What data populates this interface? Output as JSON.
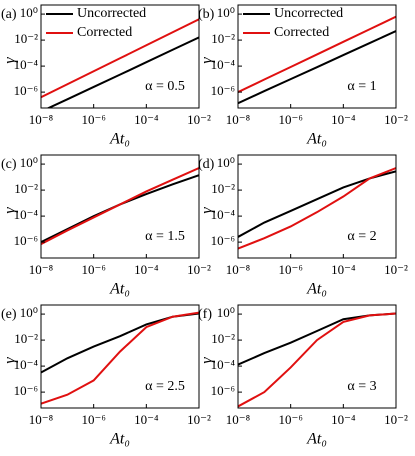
{
  "chart_data": [
    {
      "type": "line",
      "panel_label": "(a)",
      "annotation": "α = 0.5",
      "xlabel": "At₀",
      "ylabel": "γ",
      "log_x": true,
      "log_y": true,
      "legend": "upper left",
      "x": [
        1e-08,
        1e-07,
        1e-06,
        1e-05,
        0.0001,
        0.001,
        0.01
      ],
      "series": [
        {
          "name": "Uncorrected",
          "color": "#000000",
          "values": [
            3.2e-08,
            2.8e-07,
            2.5e-06,
            2.2e-05,
            0.0002,
            0.0018,
            0.016
          ]
        },
        {
          "name": "Corrected",
          "color": "#e01010",
          "values": [
            4e-07,
            4e-06,
            4e-05,
            0.0004,
            0.004,
            0.04,
            0.4
          ]
        }
      ],
      "xlim": [
        1e-08,
        0.01
      ],
      "xticks": [
        {
          "value": 1e-08,
          "label": "10⁻⁸"
        },
        {
          "value": 1e-06,
          "label": "10⁻⁶"
        },
        {
          "value": 0.0001,
          "label": "10⁻⁴"
        },
        {
          "value": 0.01,
          "label": "10⁻²"
        }
      ],
      "ylim": [
        6e-08,
        5
      ],
      "yticks": [
        {
          "value": 1e-06,
          "label": "10⁻⁶"
        },
        {
          "value": 0.0001,
          "label": "10⁻⁴"
        },
        {
          "value": 0.01,
          "label": "10⁻²"
        },
        {
          "value": 1,
          "label": "10⁰"
        }
      ]
    },
    {
      "type": "line",
      "panel_label": "(b)",
      "annotation": "α = 1",
      "xlabel": "At₀",
      "ylabel": "γ",
      "log_x": true,
      "log_y": true,
      "legend": "upper left",
      "x": [
        1e-08,
        1e-07,
        1e-06,
        1e-05,
        0.0001,
        0.001,
        0.01
      ],
      "series": [
        {
          "name": "Uncorrected",
          "color": "#000000",
          "values": [
            1.4e-07,
            1.2e-06,
            1e-05,
            8.3e-05,
            0.00071,
            0.0059,
            0.05
          ]
        },
        {
          "name": "Corrected",
          "color": "#e01010",
          "values": [
            1e-06,
            9.3e-06,
            8.5e-05,
            0.00079,
            0.0074,
            0.068,
            0.63
          ]
        }
      ],
      "xlim": [
        1e-08,
        0.01
      ],
      "xticks": [
        {
          "value": 1e-08,
          "label": "10⁻⁸"
        },
        {
          "value": 1e-06,
          "label": "10⁻⁶"
        },
        {
          "value": 0.0001,
          "label": "10⁻⁴"
        },
        {
          "value": 0.01,
          "label": "10⁻²"
        }
      ],
      "ylim": [
        6e-08,
        5
      ],
      "yticks": [
        {
          "value": 1e-06,
          "label": "10⁻⁶"
        },
        {
          "value": 0.0001,
          "label": "10⁻⁴"
        },
        {
          "value": 0.01,
          "label": "10⁻²"
        },
        {
          "value": 1,
          "label": "10⁰"
        }
      ]
    },
    {
      "type": "line",
      "panel_label": "(c)",
      "annotation": "α = 1.5",
      "xlabel": "At₀",
      "ylabel": "γ",
      "log_x": true,
      "log_y": true,
      "x": [
        1e-08,
        1e-07,
        1e-06,
        1e-05,
        0.0001,
        0.001,
        0.01
      ],
      "series": [
        {
          "color": "#000000",
          "values": [
            1e-06,
            1e-05,
            0.0001,
            0.00079,
            0.005,
            0.028,
            0.14
          ]
        },
        {
          "color": "#e01010",
          "values": [
            7.1e-07,
            7.9e-06,
            7.9e-05,
            0.00079,
            0.0079,
            0.063,
            0.5
          ]
        }
      ],
      "xlim": [
        1e-08,
        0.01
      ],
      "xticks": [
        {
          "value": 1e-08,
          "label": "10⁻⁸"
        },
        {
          "value": 1e-06,
          "label": "10⁻⁶"
        },
        {
          "value": 0.0001,
          "label": "10⁻⁴"
        },
        {
          "value": 0.01,
          "label": "10⁻²"
        }
      ],
      "ylim": [
        6e-08,
        5
      ],
      "yticks": [
        {
          "value": 1e-06,
          "label": "10⁻⁶"
        },
        {
          "value": 0.0001,
          "label": "10⁻⁴"
        },
        {
          "value": 0.01,
          "label": "10⁻²"
        },
        {
          "value": 1,
          "label": "10⁰"
        }
      ]
    },
    {
      "type": "line",
      "panel_label": "(d)",
      "annotation": "α = 2",
      "xlabel": "At₀",
      "ylabel": "γ",
      "log_x": true,
      "log_y": true,
      "x": [
        1e-08,
        1e-07,
        1e-06,
        1e-05,
        0.0001,
        0.001,
        0.01
      ],
      "series": [
        {
          "color": "#000000",
          "values": [
            2.5e-06,
            3.2e-05,
            0.00025,
            0.002,
            0.016,
            0.079,
            0.28
          ]
        },
        {
          "color": "#e01010",
          "values": [
            3.2e-07,
            2e-06,
            1.6e-05,
            0.0002,
            0.0032,
            0.079,
            0.5
          ]
        }
      ],
      "xlim": [
        1e-08,
        0.01
      ],
      "xticks": [
        {
          "value": 1e-08,
          "label": "10⁻⁸"
        },
        {
          "value": 1e-06,
          "label": "10⁻⁶"
        },
        {
          "value": 0.0001,
          "label": "10⁻⁴"
        },
        {
          "value": 0.01,
          "label": "10⁻²"
        }
      ],
      "ylim": [
        6e-08,
        5
      ],
      "yticks": [
        {
          "value": 1e-06,
          "label": "10⁻⁶"
        },
        {
          "value": 0.0001,
          "label": "10⁻⁴"
        },
        {
          "value": 0.01,
          "label": "10⁻²"
        },
        {
          "value": 1,
          "label": "10⁰"
        }
      ]
    },
    {
      "type": "line",
      "panel_label": "(e)",
      "annotation": "α = 2.5",
      "xlabel": "At₀",
      "ylabel": "γ",
      "log_x": true,
      "log_y": true,
      "x": [
        1e-08,
        1e-07,
        1e-06,
        1e-05,
        0.0001,
        0.001,
        0.01
      ],
      "series": [
        {
          "color": "#000000",
          "values": [
            3.2e-05,
            0.0004,
            0.0032,
            0.02,
            0.16,
            0.63,
            1.1
          ]
        },
        {
          "color": "#e01010",
          "values": [
            1.3e-07,
            6.3e-07,
            7.9e-06,
            0.0013,
            0.1,
            0.63,
            1.3
          ]
        }
      ],
      "xlim": [
        1e-08,
        0.01
      ],
      "xticks": [
        {
          "value": 1e-08,
          "label": "10⁻⁸"
        },
        {
          "value": 1e-06,
          "label": "10⁻⁶"
        },
        {
          "value": 0.0001,
          "label": "10⁻⁴"
        },
        {
          "value": 0.01,
          "label": "10⁻²"
        }
      ],
      "ylim": [
        6e-08,
        5
      ],
      "yticks": [
        {
          "value": 1e-06,
          "label": "10⁻⁶"
        },
        {
          "value": 0.0001,
          "label": "10⁻⁴"
        },
        {
          "value": 0.01,
          "label": "10⁻²"
        },
        {
          "value": 1,
          "label": "10⁰"
        }
      ]
    },
    {
      "type": "line",
      "panel_label": "(f)",
      "annotation": "α = 3",
      "xlabel": "At₀",
      "ylabel": "γ",
      "log_x": true,
      "log_y": true,
      "x": [
        1e-08,
        1e-07,
        1e-06,
        1e-05,
        0.0001,
        0.001,
        0.01
      ],
      "series": [
        {
          "color": "#000000",
          "values": [
            0.00013,
            0.001,
            0.0063,
            0.05,
            0.4,
            0.79,
            1.1
          ]
        },
        {
          "color": "#e01010",
          "values": [
            7.9e-08,
            1e-06,
            7.9e-05,
            0.01,
            0.25,
            0.79,
            1.1
          ]
        }
      ],
      "xlim": [
        1e-08,
        0.01
      ],
      "xticks": [
        {
          "value": 1e-08,
          "label": "10⁻⁸"
        },
        {
          "value": 1e-06,
          "label": "10⁻⁶"
        },
        {
          "value": 0.0001,
          "label": "10⁻⁴"
        },
        {
          "value": 0.01,
          "label": "10⁻²"
        }
      ],
      "ylim": [
        6e-08,
        5
      ],
      "yticks": [
        {
          "value": 1e-06,
          "label": "10⁻⁶"
        },
        {
          "value": 0.0001,
          "label": "10⁻⁴"
        },
        {
          "value": 0.01,
          "label": "10⁻²"
        },
        {
          "value": 1,
          "label": "10⁰"
        }
      ]
    }
  ]
}
